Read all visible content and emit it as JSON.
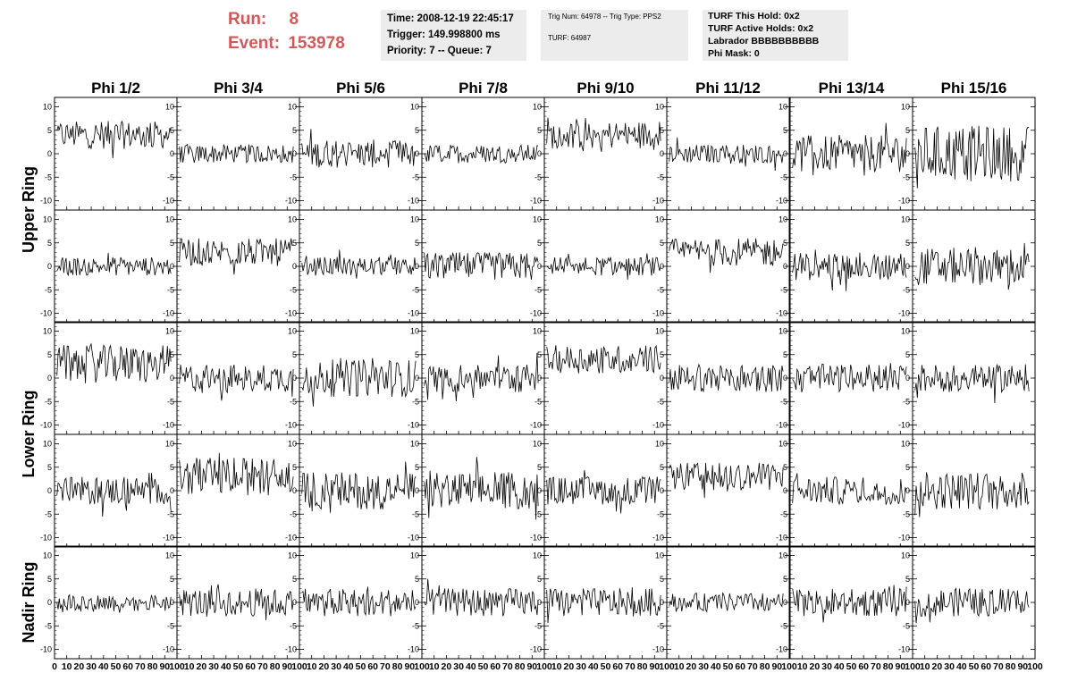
{
  "header": {
    "run_label": "Run:",
    "run_value": "8",
    "event_label": "Event:",
    "event_value": "153978",
    "time": "Time: 2008-12-19 22:45:17",
    "trigger": "Trigger: 149.998800 ms",
    "priority": "Priority: 7 -- Queue: 7",
    "trig_num": "Trig Num: 64978 -- Trig Type: PPS2",
    "turf": "TURF: 64987",
    "turf_hold": "TURF This Hold: 0x2",
    "turf_active": "TURF Active Holds: 0x2",
    "labrador": "Labrador BBBBBBBBBB",
    "phi_mask": "Phi Mask: 0"
  },
  "chart_data": {
    "type": "line",
    "columns": [
      "Phi 1/2",
      "Phi 3/4",
      "Phi 5/6",
      "Phi 7/8",
      "Phi 9/10",
      "Phi 11/12",
      "Phi 13/14",
      "Phi 15/16"
    ],
    "rows": [
      "Upper Ring",
      "Lower Ring",
      "Nadir Ring"
    ],
    "xlim": [
      0,
      100
    ],
    "ylim": [
      -12,
      12
    ],
    "x_ticks": [
      0,
      10,
      20,
      30,
      40,
      50,
      60,
      70,
      80,
      90,
      100
    ],
    "y_ticks": [
      -10,
      -5,
      0,
      5,
      10
    ],
    "panels_per_row_group": [
      2,
      2,
      1
    ],
    "baselines": [
      [
        4,
        0,
        0,
        0,
        4,
        0,
        0,
        0
      ],
      [
        0,
        3,
        0,
        0,
        0,
        3,
        0,
        0
      ],
      [
        3,
        0,
        0,
        0,
        4,
        0,
        0,
        0
      ],
      [
        0,
        3,
        0,
        0,
        0,
        3,
        0,
        0
      ],
      [
        0,
        0,
        0,
        0,
        0,
        0,
        0,
        0
      ]
    ],
    "amplitudes": [
      [
        3,
        2,
        3,
        2,
        3,
        2,
        4,
        6
      ],
      [
        2,
        3,
        2,
        3,
        2,
        3,
        3,
        4
      ],
      [
        4,
        3,
        4,
        3,
        3,
        3,
        3,
        3
      ],
      [
        3,
        4,
        4,
        4,
        3,
        3,
        3,
        4
      ],
      [
        2,
        3,
        3,
        3,
        3,
        2,
        3,
        3
      ]
    ],
    "samples_per_trace": 100,
    "trace_color": "#000000",
    "title_color": "#d05a5a"
  }
}
